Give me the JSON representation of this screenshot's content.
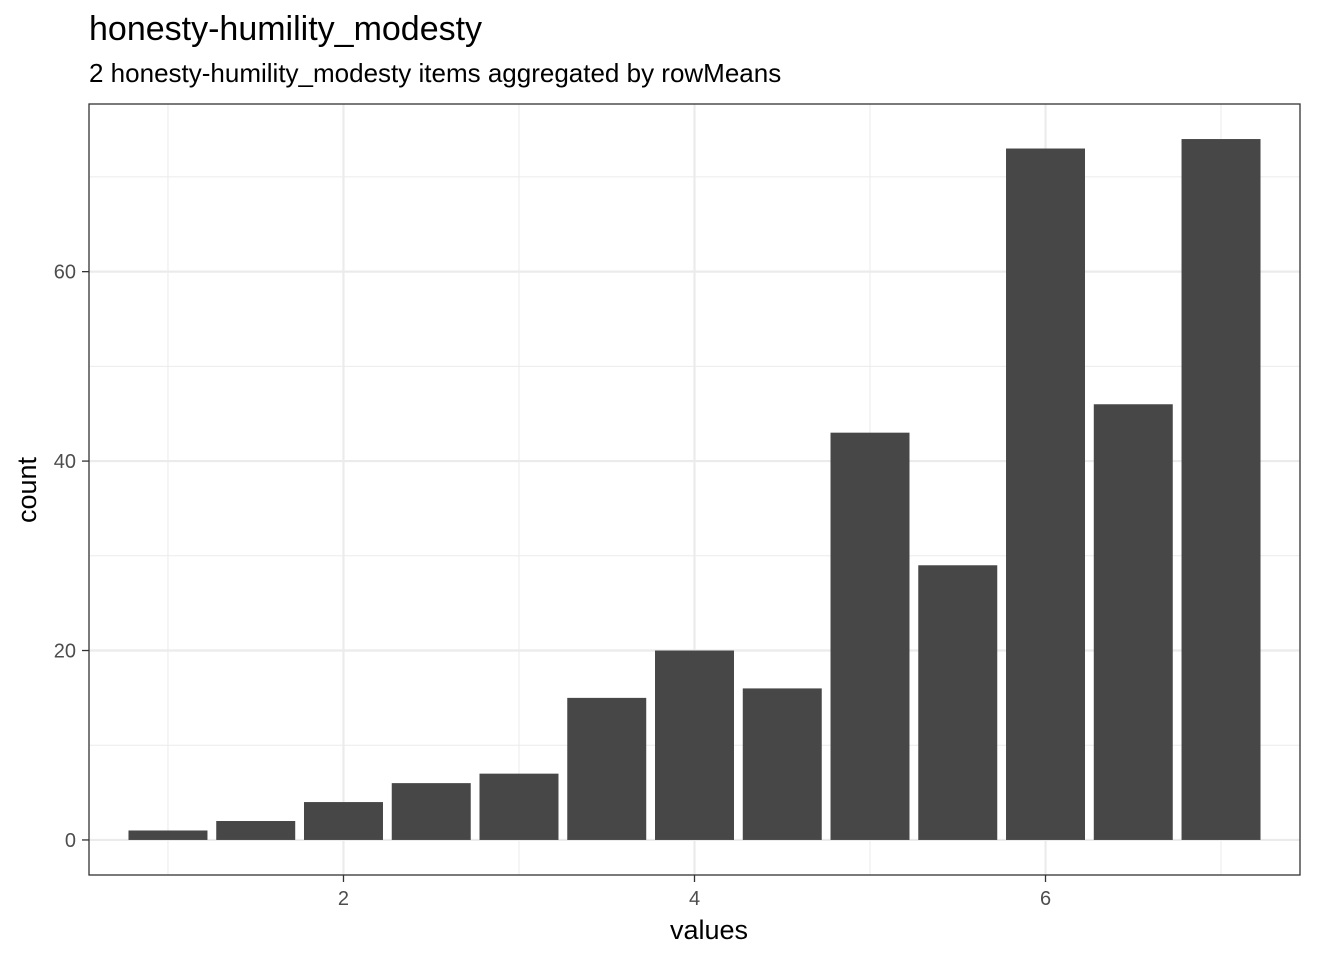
{
  "chart_data": {
    "type": "bar",
    "title": "honesty-humility_modesty",
    "subtitle": "2 honesty-humility_modesty items aggregated by rowMeans",
    "xlabel": "values",
    "ylabel": "count",
    "x": [
      1,
      1.5,
      2,
      2.5,
      3,
      3.5,
      4,
      4.5,
      5,
      5.5,
      6,
      6.5,
      7
    ],
    "values": [
      1,
      2,
      4,
      6,
      7,
      15,
      20,
      16,
      43,
      29,
      73,
      46,
      74
    ],
    "xlim": [
      0.55,
      7.45
    ],
    "ylim": [
      -3.7,
      77.7
    ],
    "x_ticks": [
      2,
      4,
      6
    ],
    "x_tick_labels": [
      "2",
      "4",
      "6"
    ],
    "y_ticks": [
      0,
      20,
      40,
      60
    ],
    "y_tick_labels": [
      "0",
      "20",
      "40",
      "60"
    ],
    "grid": true,
    "colors": {
      "bar": "#474747",
      "grid": "#ebebeb",
      "panel_border": "#333333",
      "background": "#ffffff"
    }
  }
}
